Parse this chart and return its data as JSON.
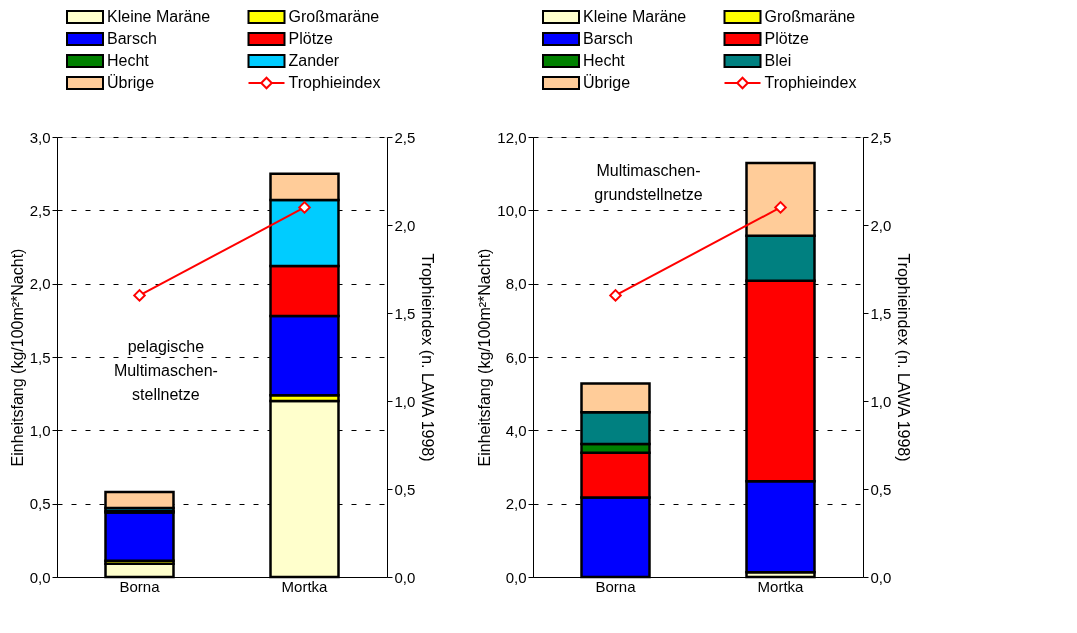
{
  "chart_data": [
    {
      "type": "bar",
      "stacked": true,
      "categories": [
        "Borna",
        "Mortka"
      ],
      "ylabel": "Einheitsfang (kg/100m²*Nacht)",
      "y2label": "Trophieindex (n. LAWA 1998)",
      "annotations": [
        "pelagische\nMultimaschen-\nstellnetze"
      ],
      "ylim": [
        0,
        3
      ],
      "yticks": [
        {
          "value": 0,
          "label": "0,0"
        },
        {
          "value": 0.5,
          "label": "0,5"
        },
        {
          "value": 1,
          "label": "1,0"
        },
        {
          "value": 1.5,
          "label": "1,5"
        },
        {
          "value": 2,
          "label": "2,0"
        },
        {
          "value": 2.5,
          "label": "2,5"
        },
        {
          "value": 3,
          "label": "3,0"
        }
      ],
      "y2lim": [
        0,
        2.5
      ],
      "y2ticks": [
        {
          "value": 0,
          "label": "0,0"
        },
        {
          "value": 0.5,
          "label": "0,5"
        },
        {
          "value": 1,
          "label": "1,0"
        },
        {
          "value": 1.5,
          "label": "1,5"
        },
        {
          "value": 2,
          "label": "2,0"
        },
        {
          "value": 2.5,
          "label": "2,5"
        }
      ],
      "grid": "y",
      "legend": "top",
      "marker": "diamond",
      "series": [
        {
          "name": "Kleine Maräne",
          "color": "#ffffcc",
          "values": [
            0.09,
            1.2
          ]
        },
        {
          "name": "Großmaräne",
          "color": "#ffff00",
          "values": [
            0.02,
            0.04
          ]
        },
        {
          "name": "Barsch",
          "color": "#0000ff",
          "values": [
            0.33,
            0.54
          ]
        },
        {
          "name": "Plötze",
          "color": "#ff0000",
          "values": [
            null,
            0.34
          ]
        },
        {
          "name": "Hecht",
          "color": "#008000",
          "values": [
            0.01,
            null
          ]
        },
        {
          "name": "Zander",
          "color": "#00ccff",
          "values": [
            0.02,
            0.45
          ]
        },
        {
          "name": "Übrige",
          "color": "#ffcc99",
          "values": [
            0.11,
            0.18
          ]
        },
        {
          "name": "Trophieindex",
          "type": "line",
          "axis": "y2",
          "color": "#ff0000",
          "values": [
            1.6,
            2.1
          ]
        }
      ]
    },
    {
      "type": "bar",
      "stacked": true,
      "categories": [
        "Borna",
        "Mortka"
      ],
      "ylabel": "Einheitsfang (kg/100m²*Nacht)",
      "y2label": "Trophieindex (n. LAWA 1998)",
      "annotations": [
        "Multimaschen-\ngrundstellnetze"
      ],
      "ylim": [
        0,
        12
      ],
      "yticks": [
        {
          "value": 0,
          "label": "0,0"
        },
        {
          "value": 2,
          "label": "2,0"
        },
        {
          "value": 4,
          "label": "4,0"
        },
        {
          "value": 6,
          "label": "6,0"
        },
        {
          "value": 8,
          "label": "8,0"
        },
        {
          "value": 10,
          "label": "10,0"
        },
        {
          "value": 12,
          "label": "12,0"
        }
      ],
      "y2lim": [
        0,
        2.5
      ],
      "y2ticks": [
        {
          "value": 0,
          "label": "0,0"
        },
        {
          "value": 0.5,
          "label": "0,5"
        },
        {
          "value": 1,
          "label": "1,0"
        },
        {
          "value": 1.5,
          "label": "1,5"
        },
        {
          "value": 2,
          "label": "2,0"
        },
        {
          "value": 2.5,
          "label": "2,5"
        }
      ],
      "grid": "y",
      "legend": "top",
      "marker": "diamond",
      "series": [
        {
          "name": "Kleine Maräne",
          "color": "#ffffcc",
          "values": [
            null,
            0.13
          ]
        },
        {
          "name": "Großmaräne",
          "color": "#ffff00",
          "values": [
            null,
            null
          ]
        },
        {
          "name": "Barsch",
          "color": "#0000ff",
          "values": [
            2.17,
            2.48
          ]
        },
        {
          "name": "Plötze",
          "color": "#ff0000",
          "values": [
            1.22,
            5.47
          ]
        },
        {
          "name": "Hecht",
          "color": "#008000",
          "values": [
            0.24,
            null
          ]
        },
        {
          "name": "Blei",
          "color": "#008080",
          "values": [
            0.86,
            1.23
          ]
        },
        {
          "name": "Übrige",
          "color": "#ffcc99",
          "values": [
            0.79,
            1.98
          ]
        },
        {
          "name": "Trophieindex",
          "type": "line",
          "axis": "y2",
          "color": "#ff0000",
          "values": [
            1.6,
            2.1
          ]
        }
      ]
    }
  ]
}
